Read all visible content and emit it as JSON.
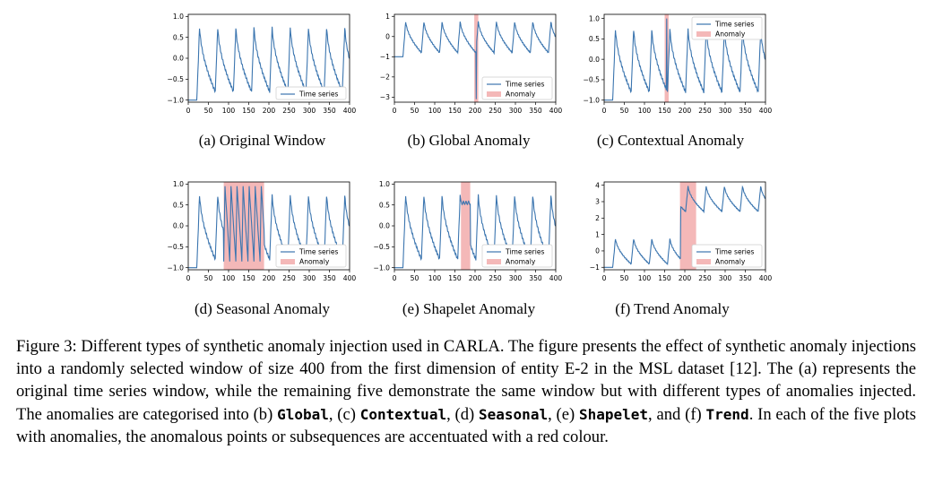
{
  "figure": {
    "panels": [
      {
        "id": "a",
        "caption": "(a) Original Window",
        "anomaly": "none",
        "chart_data": {
          "type": "line",
          "x_ticks": [
            "0",
            "50",
            "100",
            "150",
            "200",
            "250",
            "300",
            "350",
            "400"
          ],
          "y_ticks": [
            "1.0",
            "0.5",
            "0.0",
            "−0.5",
            "−1.0"
          ],
          "xlim": [
            0,
            400
          ],
          "ylim": [
            -1.05,
            1.05
          ],
          "series": [
            {
              "name": "Time series",
              "pattern": "sawtooth",
              "period": 45,
              "start": 22,
              "low": -0.8,
              "high": 0.8
            }
          ],
          "legend": [
            "Time series"
          ],
          "legend_position": "lower-right"
        }
      },
      {
        "id": "b",
        "caption": "(b) Global Anomaly",
        "anomaly": "global",
        "chart_data": {
          "type": "line",
          "x_ticks": [
            "0",
            "50",
            "100",
            "150",
            "200",
            "250",
            "300",
            "350",
            "400"
          ],
          "y_ticks": [
            "1",
            "0",
            "−1",
            "−2",
            "−3"
          ],
          "xlim": [
            0,
            400
          ],
          "ylim": [
            -3.25,
            1.1
          ],
          "series": [
            {
              "name": "Time series",
              "pattern": "sawtooth",
              "period": 45,
              "start": 22,
              "low": -0.8,
              "high": 0.8,
              "spike": {
                "x": 203,
                "y": -3.1
              }
            }
          ],
          "anomaly_region": [
            198,
            208
          ],
          "legend": [
            "Time series",
            "Anomaly"
          ],
          "legend_position": "lower-right"
        }
      },
      {
        "id": "c",
        "caption": "(c) Contextual Anomaly",
        "anomaly": "contextual",
        "chart_data": {
          "type": "line",
          "x_ticks": [
            "0",
            "50",
            "100",
            "150",
            "200",
            "250",
            "300",
            "350",
            "400"
          ],
          "y_ticks": [
            "1.0",
            "0.5",
            "0.0",
            "−0.5",
            "−1.0"
          ],
          "xlim": [
            0,
            400
          ],
          "ylim": [
            -1.05,
            1.1
          ],
          "series": [
            {
              "name": "Time series",
              "pattern": "sawtooth",
              "period": 45,
              "start": 22,
              "low": -0.8,
              "high": 0.8,
              "spike": {
                "x": 155,
                "y": 1.0
              }
            }
          ],
          "anomaly_region": [
            150,
            160
          ],
          "legend": [
            "Time series",
            "Anomaly"
          ],
          "legend_position": "top-right"
        }
      },
      {
        "id": "d",
        "caption": "(d) Seasonal Anomaly",
        "anomaly": "seasonal",
        "chart_data": {
          "type": "line",
          "x_ticks": [
            "0",
            "50",
            "100",
            "150",
            "200",
            "250",
            "300",
            "350",
            "400"
          ],
          "y_ticks": [
            "1.0",
            "0.5",
            "0.0",
            "−0.5",
            "−1.0"
          ],
          "xlim": [
            0,
            400
          ],
          "ylim": [
            -1.05,
            1.05
          ],
          "series": [
            {
              "name": "Time series",
              "pattern": "sawtooth",
              "period": 45,
              "start": 22,
              "low": -0.8,
              "high": 0.8,
              "fast_period": 15
            }
          ],
          "anomaly_region": [
            88,
            188
          ],
          "legend": [
            "Time series",
            "Anomaly"
          ],
          "legend_position": "lower-right"
        }
      },
      {
        "id": "e",
        "caption": "(e) Shapelet Anomaly",
        "anomaly": "shapelet",
        "chart_data": {
          "type": "line",
          "x_ticks": [
            "0",
            "50",
            "100",
            "150",
            "200",
            "250",
            "300",
            "350",
            "400"
          ],
          "y_ticks": [
            "1.0",
            "0.5",
            "0.0",
            "−0.5",
            "−1.0"
          ],
          "xlim": [
            0,
            400
          ],
          "ylim": [
            -1.05,
            1.05
          ],
          "series": [
            {
              "name": "Time series",
              "pattern": "sawtooth",
              "period": 45,
              "start": 22,
              "low": -0.8,
              "high": 0.8,
              "flat": {
                "from": 165,
                "to": 188,
                "y": 0.55
              }
            }
          ],
          "anomaly_region": [
            165,
            188
          ],
          "legend": [
            "Time series",
            "Anomaly"
          ],
          "legend_position": "lower-right"
        }
      },
      {
        "id": "f",
        "caption": "(f) Trend Anomaly",
        "anomaly": "trend",
        "chart_data": {
          "type": "line",
          "x_ticks": [
            "0",
            "50",
            "100",
            "150",
            "200",
            "250",
            "300",
            "350",
            "400"
          ],
          "y_ticks": [
            "4",
            "3",
            "2",
            "1",
            "0",
            "−1"
          ],
          "xlim": [
            0,
            400
          ],
          "ylim": [
            -1.15,
            4.2
          ],
          "series": [
            {
              "name": "Time series",
              "pattern": "sawtooth",
              "period": 45,
              "start": 22,
              "low": -0.8,
              "high": 0.8,
              "trend": {
                "from": 190,
                "offset": 3.2
              }
            }
          ],
          "anomaly_region": [
            188,
            228
          ],
          "legend": [
            "Time series",
            "Anomaly"
          ],
          "legend_position": "lower-right"
        }
      }
    ],
    "caption": {
      "p1": "Figure 3: Different types of synthetic anomaly injection used in CARLA. The figure presents the effect of synthetic anomaly injections into a randomly selected window of size 400 from the first dimension of entity E-2 in the MSL dataset [12]. The (a) represents the original time series window, while the remaining five demonstrate the same window but with different types of anomalies injected. The anomalies are categorised into (b) ",
      "global": "Global",
      "sep1": ", (c) ",
      "contextual": "Contextual",
      "sep2": ", (d) ",
      "seasonal": "Seasonal",
      "sep3": ", (e) ",
      "shapelet": "Shapelet",
      "sep4": ", and (f) ",
      "trend": "Trend",
      "p2": ". In each of the five plots with anomalies, the anomalous points or subsequences are accentuated with a red colour."
    },
    "colors": {
      "line": "#3b75af",
      "anomaly": "#f4b8b8"
    }
  }
}
